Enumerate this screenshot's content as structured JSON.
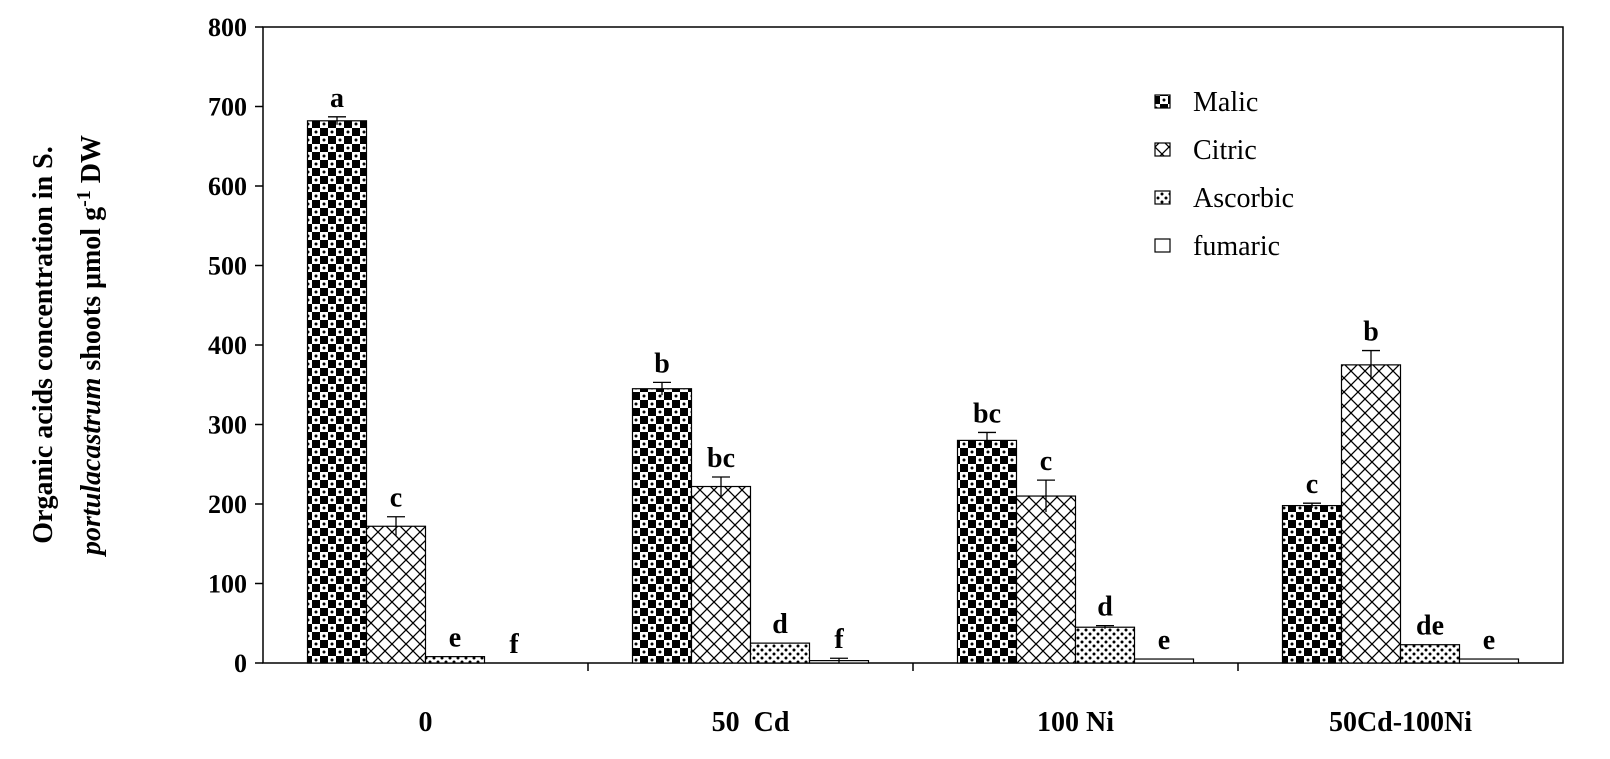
{
  "chart_data": {
    "type": "bar",
    "title": "",
    "xlabel": "",
    "ylabel": {
      "line1": "Organic acids concentration in S.",
      "line2_italic": "portulacastrum",
      "line2_rest": " shoots μmol g",
      "line2_sup": "-1",
      "line2_end": " DW"
    },
    "ylim": [
      0,
      800
    ],
    "yticks": [
      0,
      100,
      200,
      300,
      400,
      500,
      600,
      700,
      800
    ],
    "categories": [
      "0",
      "50  Cd",
      "100 Ni",
      "50Cd-100Ni"
    ],
    "legend_position": "top-right",
    "series": [
      {
        "name": "Malic",
        "pattern": "checker",
        "values": [
          682,
          345,
          280,
          198
        ],
        "errors": [
          5,
          8,
          10,
          3
        ],
        "significance": [
          "a",
          "b",
          "bc",
          "c"
        ]
      },
      {
        "name": "Citric",
        "pattern": "crosshatch",
        "values": [
          172,
          222,
          210,
          375
        ],
        "errors": [
          12,
          12,
          20,
          18
        ],
        "significance": [
          "c",
          "bc",
          "c",
          "b"
        ]
      },
      {
        "name": "Ascorbic",
        "pattern": "dots",
        "values": [
          8,
          25,
          45,
          23
        ],
        "errors": [
          0,
          0,
          2,
          0
        ],
        "significance": [
          "e",
          "d",
          "d",
          "de"
        ]
      },
      {
        "name": "fumaric",
        "pattern": "none",
        "values": [
          0,
          3,
          5,
          5
        ],
        "errors": [
          0,
          3,
          0,
          0
        ],
        "significance": [
          "f",
          "f",
          "e",
          "e"
        ]
      }
    ]
  }
}
